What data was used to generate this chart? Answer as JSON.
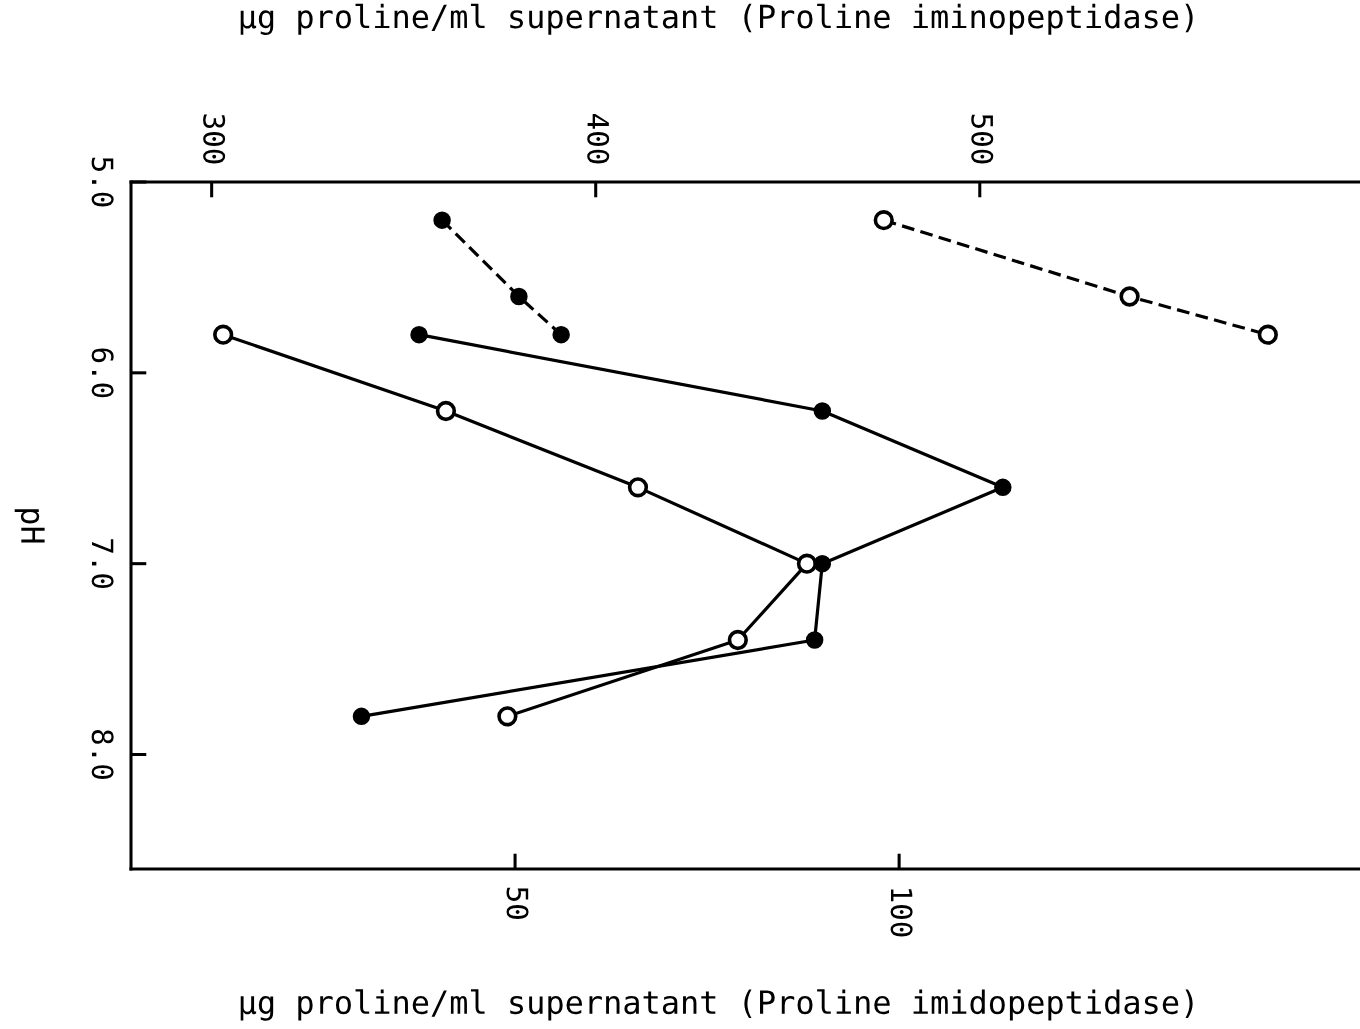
{
  "chart_data": {
    "type": "line",
    "xlabel": "µg proline/ml supernatant (Proline imidopeptidase)",
    "x2label": "µg proline/ml supernatant (Proline iminopeptidase)",
    "ylabel": "pH",
    "xlim": [
      0,
      160
    ],
    "xticks": [
      50,
      100
    ],
    "x2lim": [
      279,
      599
    ],
    "x2ticks": [
      300,
      400,
      500
    ],
    "ylim": [
      8.6,
      5.0
    ],
    "yticks": [
      {
        "value": 5,
        "label": "5.0"
      },
      {
        "value": 6,
        "label": "6.0"
      },
      {
        "value": 7,
        "label": "7.0"
      },
      {
        "value": 8,
        "label": "8.0"
      }
    ],
    "marker": "circle",
    "series": [
      {
        "color": "#000000",
        "line_style": "dashed",
        "axis": "x2",
        "x": [
          360,
          380,
          391
        ],
        "values": [
          5.2,
          5.6,
          5.8
        ]
      },
      {
        "color": "#000000",
        "line_style": "dashed",
        "marker": "open circle",
        "x": [
          98,
          130,
          148
        ],
        "values": [
          5.2,
          5.6,
          5.8
        ]
      },
      {
        "color": "#000000",
        "line_style": "solid",
        "axis": "x2",
        "x": [
          354,
          459,
          506,
          459,
          457,
          339
        ],
        "values": [
          5.8,
          6.2,
          6.6,
          7.0,
          7.4,
          7.8
        ]
      },
      {
        "color": "#000000",
        "line_style": "solid",
        "marker": "open circle",
        "x": [
          12,
          41,
          66,
          88,
          79,
          49
        ],
        "values": [
          5.8,
          6.2,
          6.6,
          7.0,
          7.4,
          7.8
        ]
      }
    ]
  }
}
